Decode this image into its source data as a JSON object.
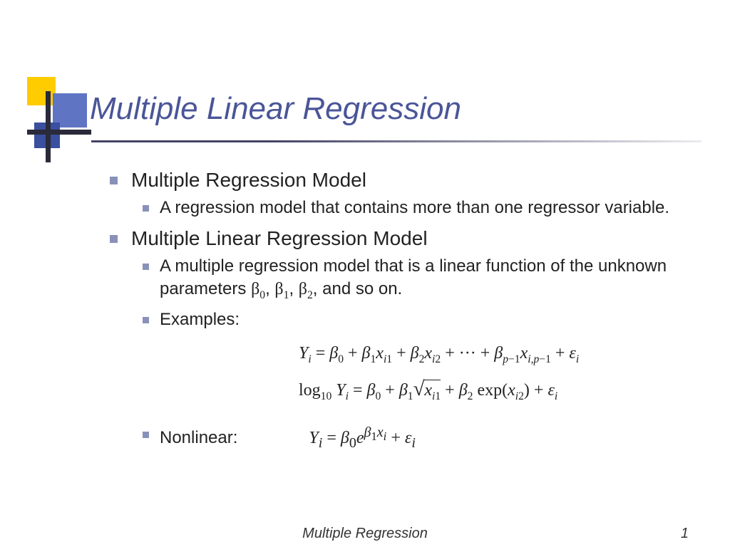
{
  "title": "Multiple Linear Regression",
  "colors": {
    "title_color": "#4a5598",
    "bullet_color": "#8891b8",
    "text_color": "#222222",
    "deco_yellow": "#ffcc00",
    "deco_blue1": "#6074c4",
    "deco_blue2": "#3a4f9e",
    "deco_cross": "#2a2a3a",
    "background": "#ffffff"
  },
  "typography": {
    "title_fontsize": 44,
    "title_italic": true,
    "level1_fontsize": 28,
    "level2_fontsize": 24,
    "equation_fontsize": 24,
    "footer_fontsize": 20,
    "body_font": "Verdana",
    "math_font": "Times New Roman"
  },
  "bullets": [
    {
      "label": "Multiple Regression Model",
      "children": [
        {
          "text": "A regression model that contains more than one regressor variable."
        }
      ]
    },
    {
      "label": "Multiple Linear Regression Model",
      "children": [
        {
          "text_parts": {
            "pre": "A multiple regression model that is a linear function of the unknown parameters ",
            "b0": "β",
            "s0": "0",
            "c0": ", ",
            "b1": "β",
            "s1": "1",
            "c1": ", ",
            "b2": "β",
            "s2": "2",
            "end": ", and so on."
          }
        },
        {
          "text": "Examples:"
        },
        {
          "text": "Nonlinear:"
        }
      ]
    }
  ],
  "equations": {
    "eq1": "Y_i = β_0 + β_1 x_{i1} + β_2 x_{i2} + ··· + β_{p−1} x_{i,p−1} + ε_i",
    "eq2": "log_{10} Y_i = β_0 + β_1 √(x_{i1}) + β_2 exp(x_{i2}) + ε_i",
    "eq3": "Y_i = β_0 e^{β_1 x_i} + ε_i"
  },
  "footer": {
    "center": "Multiple Regression",
    "page": "1"
  }
}
